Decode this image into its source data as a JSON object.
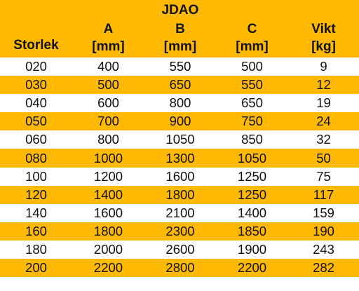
{
  "table": {
    "title": "JDAO",
    "headers": [
      {
        "label": "Storlek",
        "unit": ""
      },
      {
        "label": "A",
        "unit": "[mm]"
      },
      {
        "label": "B",
        "unit": "[mm]"
      },
      {
        "label": "C",
        "unit": "[mm]"
      },
      {
        "label": "Vikt",
        "unit": "[kg]"
      }
    ],
    "rows": [
      [
        "020",
        "400",
        "550",
        "500",
        "9"
      ],
      [
        "030",
        "500",
        "650",
        "550",
        "12"
      ],
      [
        "040",
        "600",
        "800",
        "650",
        "19"
      ],
      [
        "050",
        "700",
        "900",
        "750",
        "24"
      ],
      [
        "060",
        "800",
        "1050",
        "850",
        "32"
      ],
      [
        "080",
        "1000",
        "1300",
        "1050",
        "50"
      ],
      [
        "100",
        "1200",
        "1600",
        "1250",
        "75"
      ],
      [
        "120",
        "1400",
        "1800",
        "1250",
        "117"
      ],
      [
        "140",
        "1600",
        "2100",
        "1400",
        "159"
      ],
      [
        "160",
        "1800",
        "2300",
        "1850",
        "190"
      ],
      [
        "180",
        "2000",
        "2600",
        "1900",
        "243"
      ],
      [
        "200",
        "2200",
        "2800",
        "2200",
        "282"
      ]
    ]
  },
  "colors": {
    "band": "#FFB900",
    "plain": "#FFFFFF",
    "text": "#111111"
  }
}
